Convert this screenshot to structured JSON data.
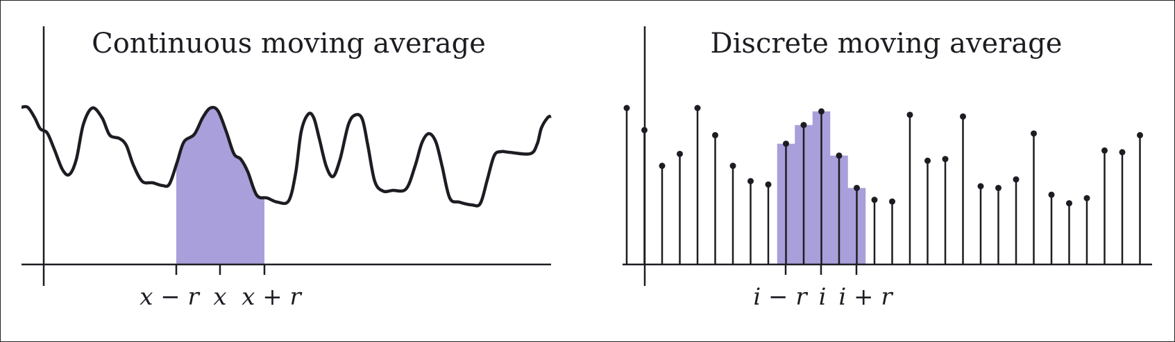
{
  "left_panel": {
    "title": "Continuous moving average",
    "labels": {
      "x_minus_r": "x − r",
      "x": "x",
      "x_plus_r": "x + r"
    }
  },
  "right_panel": {
    "title": "Discrete moving average",
    "labels": {
      "i_minus_r": "i − r",
      "i": "i",
      "i_plus_r": "i + r"
    },
    "samples": [
      0.92,
      0.79,
      0.58,
      0.65,
      0.92,
      0.76,
      0.58,
      0.49,
      0.47,
      0.71,
      0.82,
      0.9,
      0.64,
      0.45,
      0.38,
      0.37,
      0.88,
      0.61,
      0.62,
      0.87,
      0.46,
      0.45,
      0.5,
      0.77,
      0.41,
      0.36,
      0.39,
      0.67,
      0.66,
      0.76
    ],
    "window_start_index": 9,
    "window_end_index": 13
  },
  "colors": {
    "ink": "#1e1c22",
    "window_fill": "#a99fda",
    "border": "#222222"
  }
}
